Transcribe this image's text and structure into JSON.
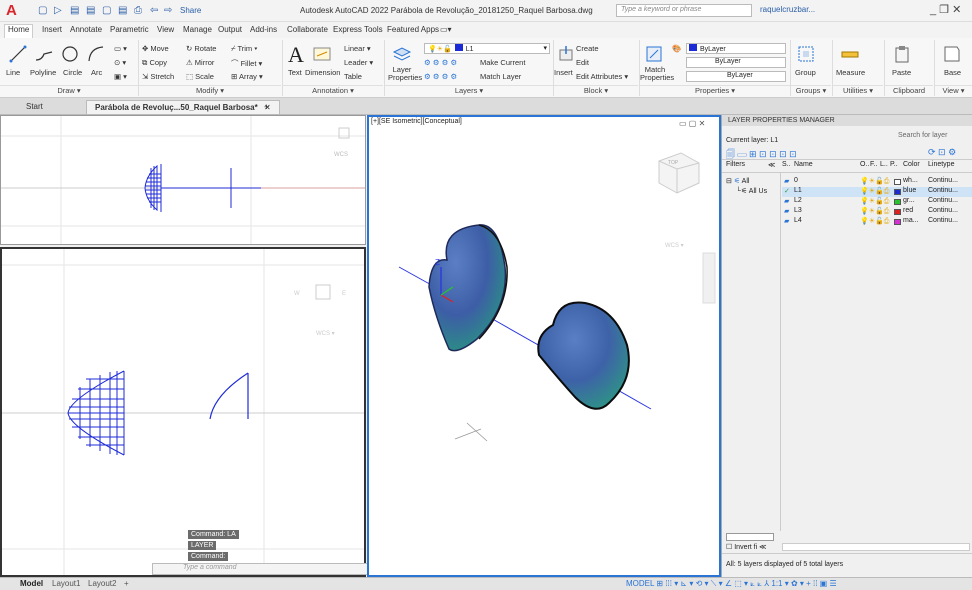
{
  "app": {
    "logo": "A",
    "title": "Autodesk AutoCAD 2022   Parábola de Revolução_20181250_Raquel Barbosa.dwg",
    "share": "Share",
    "search_placeholder": "Type a keyword or phrase",
    "user": "raquelcruzbar...",
    "window_controls": "_  ❐  ✕"
  },
  "quick_access": [
    "▢",
    "▷",
    "▤",
    "▤",
    "▢",
    "▤",
    "⎙",
    "⇦",
    "⇨"
  ],
  "ribbon_tabs": [
    "Home",
    "Insert",
    "Annotate",
    "Parametric",
    "View",
    "Manage",
    "Output",
    "Add-ins",
    "Collaborate",
    "Express Tools",
    "Featured Apps",
    "▭▾"
  ],
  "draw": {
    "line": "Line",
    "polyline": "Polyline",
    "circle": "Circle",
    "arc": "Arc",
    "panel": "Draw ▾"
  },
  "modify": {
    "move": "✥ Move",
    "rotate": "↻ Rotate",
    "trim": "⌿ Trim ▾",
    "copy": "⧉ Copy",
    "mirror": "⚠ Mirror",
    "fillet": "⌒ Fillet ▾",
    "stretch": "⇲ Stretch",
    "scale": "⬚ Scale",
    "array": "⊞ Array ▾",
    "panel": "Modify ▾"
  },
  "annotation": {
    "text": "Text",
    "dimension": "Dimension",
    "linear": "Linear ▾",
    "leader": "Leader ▾",
    "table": "Table",
    "panel": "Annotation ▾"
  },
  "layers": {
    "layer_properties": "Layer Properties",
    "current": "L1",
    "make_current": "Make Current",
    "match_layer": "Match Layer",
    "panel": "Layers ▾"
  },
  "block": {
    "insert": "Insert",
    "create": "Create",
    "edit": "Edit",
    "edit_attributes": "Edit Attributes ▾",
    "panel": "Block ▾"
  },
  "properties": {
    "match": "Match Properties",
    "bylayer1": "ByLayer",
    "bylayer2": "ByLayer",
    "bylayer3": "ByLayer",
    "panel": "Properties ▾"
  },
  "groups": {
    "group": "Group",
    "panel": "Groups ▾"
  },
  "utilities": {
    "measure": "Measure",
    "panel": "Utilities ▾"
  },
  "clipboard": {
    "paste": "Paste",
    "panel": "Clipboard"
  },
  "view": {
    "base": "Base",
    "panel": "View ▾"
  },
  "doc_tabs": {
    "start": "Start",
    "active": "Parábola de Revoluç...50_Raquel Barbosa*",
    "close": "✕",
    "add": "+"
  },
  "viewport3": {
    "label": "[+][SE Isometric][Conceptual]",
    "controls": "▭ ▢ ✕",
    "wcs": "WCS ▾"
  },
  "viewport2": {
    "wcs": "WCS ▾"
  },
  "lpm": {
    "title": "LAYER PROPERTIES MANAGER",
    "current_layer": "Current layer: L1",
    "search": "Search for layer",
    "filters": "Filters",
    "collapse": "≪",
    "col_status": "S..",
    "col_name": "Name",
    "col_on": "O..",
    "col_freeze": "F..",
    "col_lock": "L..",
    "col_plot": "P..",
    "col_color": "Color",
    "col_linetype": "Linetype",
    "filter_all": "All",
    "filter_used": "All Us",
    "invert": "Invert fi",
    "summary": "All: 5 layers displayed of 5 total layers",
    "layers": [
      {
        "name": "0",
        "color": "wh...",
        "hex": "#ffffff",
        "linetype": "Continu...",
        "current": false
      },
      {
        "name": "L1",
        "color": "blue",
        "hex": "#1d2bd6",
        "linetype": "Continu...",
        "current": true
      },
      {
        "name": "L2",
        "color": "gr...",
        "hex": "#27c42b",
        "linetype": "Continu...",
        "current": false
      },
      {
        "name": "L3",
        "color": "red",
        "hex": "#e0201e",
        "linetype": "Continu...",
        "current": false
      },
      {
        "name": "L4",
        "color": "ma...",
        "hex": "#d62fd4",
        "linetype": "Continu...",
        "current": false
      }
    ]
  },
  "command": {
    "history": [
      "Command: LA",
      "LAYER",
      "Command:"
    ],
    "placeholder": "Type a command"
  },
  "status": {
    "model": "Model",
    "layout1": "Layout1",
    "layout2": "Layout2",
    "add": "+",
    "right": "MODEL  ⊞ ⁞⁞⁞ ▾ ⊾ ▾ ⟲ ▾ ⟍ ▾ ∠ ⬚ ▾ ⟀ ⟀ ⅄ 1:1 ▾ ✿ ▾ + ⁞⁞ ▣ ☰"
  },
  "colors": {
    "accent": "#2a74d6",
    "curve": "#1e2bd6",
    "solid": "#3b5fa8"
  }
}
